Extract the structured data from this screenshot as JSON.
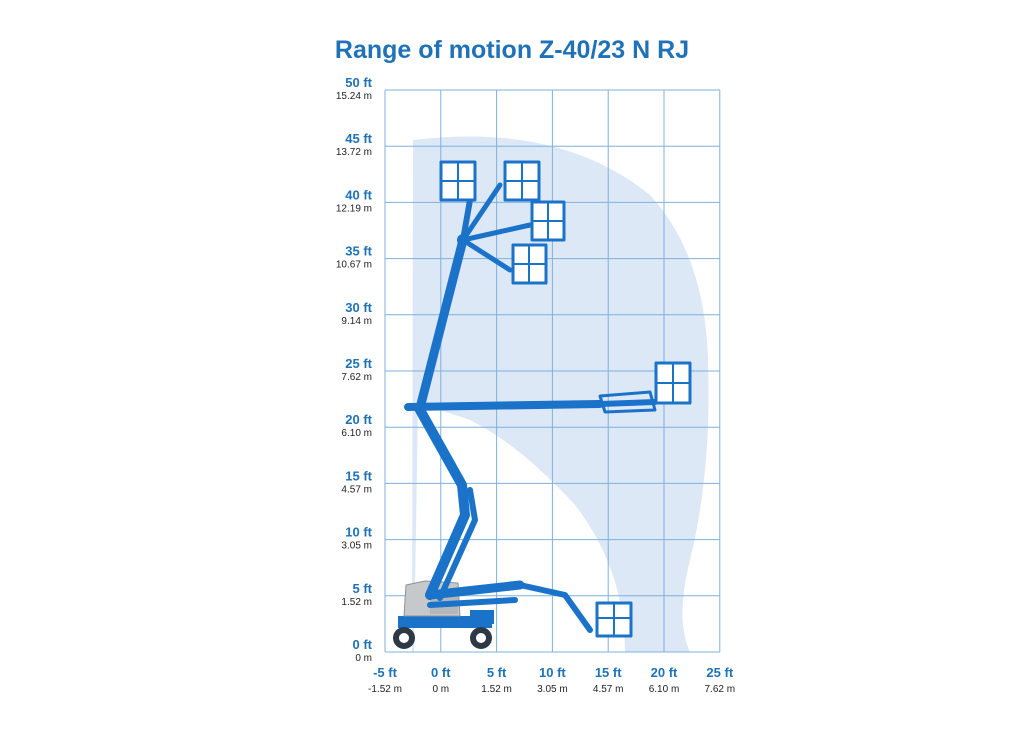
{
  "title": "Range of motion Z-40/23 N RJ",
  "colors": {
    "title": "#1f72b8",
    "grid": "#7fb0dc",
    "envelope": "#dde8f6",
    "boom": "#1a73c9",
    "chassis": "#c6c9cc"
  },
  "y_axis": {
    "ft_labels": [
      "0 ft",
      "5 ft",
      "10 ft",
      "15 ft",
      "20 ft",
      "25 ft",
      "30 ft",
      "35 ft",
      "40 ft",
      "45 ft",
      "50 ft"
    ],
    "m_labels": [
      "0 m",
      "1.52 m",
      "3.05 m",
      "4.57 m",
      "6.10 m",
      "7.62 m",
      "9.14 m",
      "10.67 m",
      "12.19 m",
      "13.72 m",
      "15.24 m"
    ]
  },
  "x_axis": {
    "ft_labels": [
      "-5 ft",
      "0 ft",
      "5 ft",
      "10 ft",
      "15 ft",
      "20 ft",
      "25 ft"
    ],
    "m_labels": [
      "-1.52 m",
      "0 m",
      "1.52 m",
      "3.05 m",
      "4.57 m",
      "6.10 m",
      "7.62 m"
    ]
  },
  "icons": {
    "machine": "boom-lift-icon"
  }
}
